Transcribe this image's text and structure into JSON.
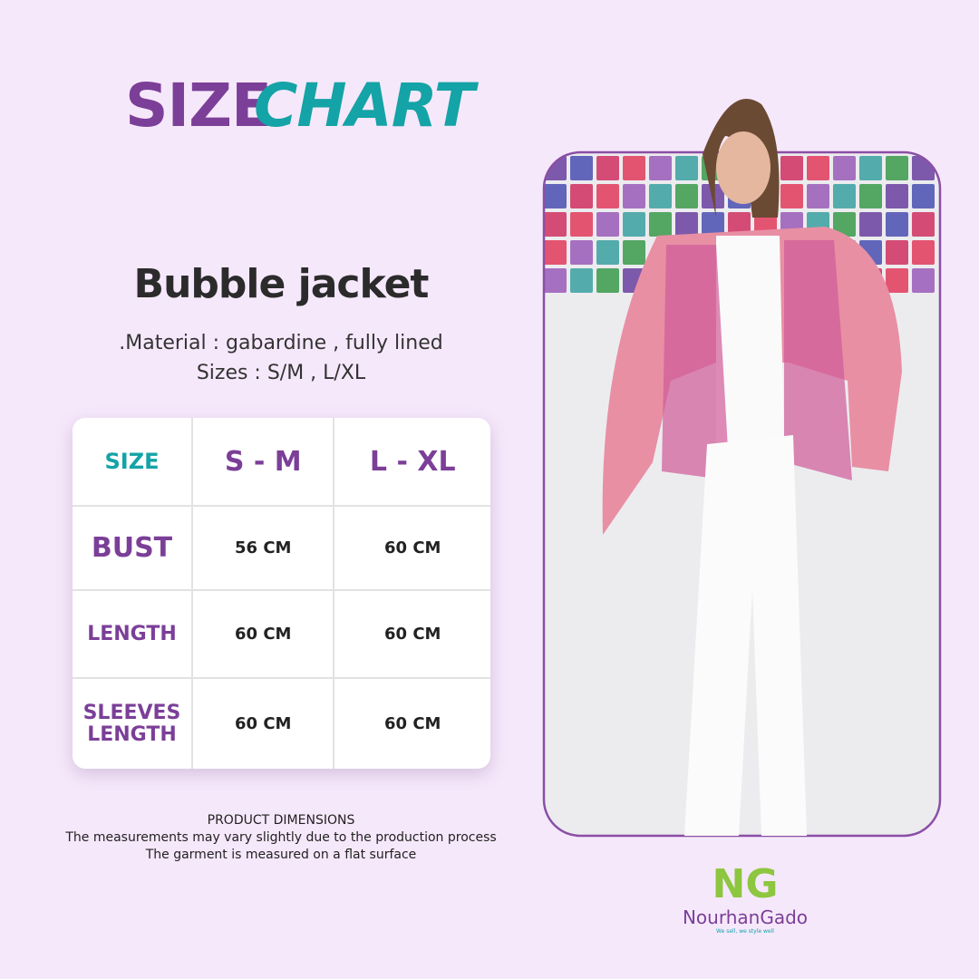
{
  "header": {
    "title_part1": "SIZE",
    "title_part2": "CHART"
  },
  "product": {
    "name": "Bubble jacket",
    "material": ".Material : gabardine , fully lined",
    "sizes": "Sizes : S/M , L/XL"
  },
  "table": {
    "rows": [
      [
        "SIZE",
        "S - M",
        "L - XL"
      ],
      [
        "BUST",
        "56 CM",
        "60 CM"
      ],
      [
        "LENGTH",
        "60  CM",
        "60 CM"
      ],
      [
        "SLEEVES LENGTH",
        "60 CM",
        "60 CM"
      ]
    ]
  },
  "footer": {
    "lines": [
      "PRODUCT DIMENSIONS",
      "The measurements may vary slightly due to the production process",
      "The garment is measured on a flat surface"
    ]
  },
  "logo": {
    "mark": "NG",
    "name": "NourhanGado",
    "tagline": "We sell, we style well"
  }
}
